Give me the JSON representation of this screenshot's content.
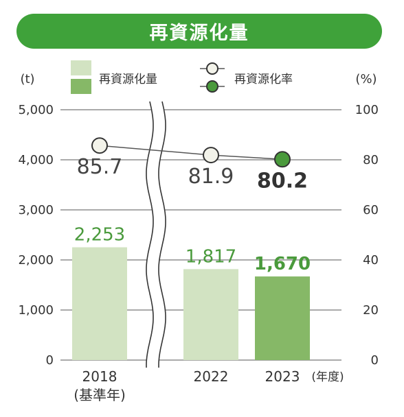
{
  "title": "再資源化量",
  "colors": {
    "banner": "#3fa23a",
    "bar_light": "#d2e3c2",
    "bar_dark": "#86b867",
    "marker_light": "#f3f3ea",
    "marker_dark": "#4a9a3c",
    "line": "#555555",
    "grid": "#555555",
    "label_green": "#4a9a3c"
  },
  "chart_data": {
    "type": "bar",
    "title": "再資源化量",
    "categories": [
      "2018",
      "2022",
      "2023"
    ],
    "category_notes": [
      "(基準年)",
      "",
      ""
    ],
    "x_unit": "(年度)",
    "left_axis": {
      "unit": "(t)",
      "ylim": [
        0,
        5000
      ],
      "ticks": [
        "0",
        "1,000",
        "2,000",
        "3,000",
        "4,000",
        "5,000"
      ]
    },
    "right_axis": {
      "unit": "(%)",
      "ylim": [
        0,
        100
      ],
      "ticks": [
        "0",
        "20",
        "40",
        "60",
        "80",
        "100"
      ]
    },
    "axis_break": "between 2018 and 2022",
    "grid": true,
    "series": [
      {
        "name": "再資源化量",
        "type": "bar",
        "axis": "left",
        "values": [
          2253,
          1817,
          1670
        ],
        "labels": [
          "2,253",
          "1,817",
          "1,670"
        ],
        "highlight_index": 2
      },
      {
        "name": "再資源化率",
        "type": "line",
        "axis": "right",
        "values": [
          85.7,
          81.9,
          80.2
        ],
        "labels": [
          "85.7",
          "81.9",
          "80.2"
        ],
        "highlight_index": 2
      }
    ],
    "legend": [
      {
        "label": "再資源化量",
        "kind": "bar"
      },
      {
        "label": "再資源化率",
        "kind": "line-marker"
      }
    ],
    "legend_position": "top"
  }
}
